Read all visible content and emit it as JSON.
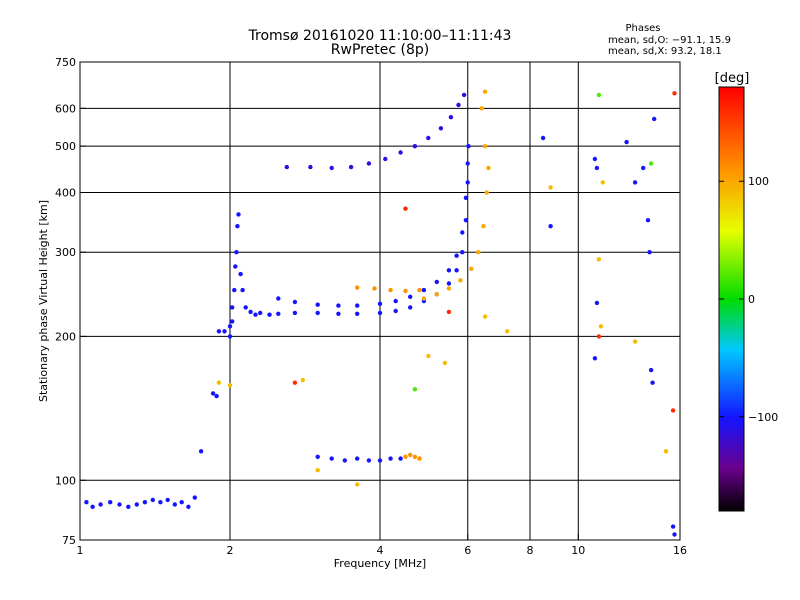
{
  "chart_data": {
    "type": "scatter",
    "title": "Tromsø 20161020 11:10:00–11:11:43",
    "subtitle": "RwPretec (8p)",
    "stats": {
      "title": "Phases",
      "line1": "mean, sd,O: −91.1, 15.9",
      "line2": "mean, sd,X:  93.2, 18.1"
    },
    "xlabel": "Frequency [MHz]",
    "ylabel": "Stationary phase Virtual Height [km]",
    "x_scale": "log",
    "y_scale": "log",
    "xlim": [
      1,
      16
    ],
    "ylim": [
      75,
      750
    ],
    "x_ticks": [
      1,
      2,
      4,
      6,
      8,
      10,
      16
    ],
    "x_tick_labels": [
      "1",
      "2",
      "4",
      "6",
      "8",
      "10",
      "16"
    ],
    "y_ticks": [
      75,
      100,
      200,
      300,
      400,
      500,
      600,
      750
    ],
    "y_tick_labels": [
      "75",
      "100",
      "200",
      "300",
      "400",
      "500",
      "600",
      "750"
    ],
    "grid": true,
    "colorbar": {
      "label": "[deg]",
      "range": [
        -180,
        180
      ],
      "ticks": [
        100,
        0,
        -100
      ],
      "tick_labels": [
        "100",
        "0",
        "−100"
      ]
    },
    "series": [
      {
        "points": [
          [
            1.03,
            90
          ],
          [
            1.06,
            88
          ],
          [
            1.1,
            89
          ],
          [
            1.15,
            90
          ],
          [
            1.2,
            89
          ],
          [
            1.25,
            88
          ],
          [
            1.3,
            89
          ],
          [
            1.35,
            90
          ],
          [
            1.4,
            91
          ],
          [
            1.45,
            90
          ],
          [
            1.5,
            91
          ],
          [
            1.55,
            89
          ],
          [
            1.6,
            90
          ],
          [
            1.65,
            88
          ],
          [
            1.7,
            92
          ]
        ],
        "phase": -100
      },
      {
        "points": [
          [
            1.75,
            115
          ],
          [
            1.85,
            152
          ],
          [
            1.88,
            150
          ],
          [
            1.9,
            205
          ],
          [
            1.95,
            205
          ],
          [
            2.0,
            210
          ],
          [
            2.02,
            215
          ]
        ],
        "phase": -100
      },
      {
        "points": [
          [
            2.0,
            200
          ],
          [
            2.02,
            230
          ],
          [
            2.04,
            250
          ],
          [
            2.05,
            280
          ],
          [
            2.06,
            300
          ],
          [
            2.07,
            340
          ],
          [
            2.08,
            360
          ],
          [
            2.1,
            270
          ],
          [
            2.12,
            250
          ],
          [
            2.15,
            230
          ],
          [
            2.2,
            225
          ],
          [
            2.25,
            222
          ],
          [
            2.3,
            224
          ],
          [
            2.4,
            222
          ],
          [
            2.5,
            223
          ],
          [
            2.7,
            224
          ],
          [
            3.0,
            224
          ],
          [
            3.3,
            223
          ],
          [
            3.6,
            223
          ],
          [
            4.0,
            224
          ],
          [
            4.3,
            226
          ],
          [
            4.6,
            230
          ],
          [
            4.9,
            237
          ],
          [
            5.2,
            245
          ],
          [
            5.5,
            258
          ],
          [
            5.7,
            275
          ],
          [
            5.85,
            300
          ],
          [
            5.95,
            350
          ],
          [
            6.0,
            420
          ],
          [
            6.02,
            500
          ]
        ],
        "phase": -100
      },
      {
        "points": [
          [
            2.5,
            240
          ],
          [
            2.7,
            236
          ],
          [
            3.0,
            233
          ],
          [
            3.3,
            232
          ],
          [
            3.6,
            232
          ],
          [
            4.0,
            234
          ],
          [
            4.3,
            237
          ],
          [
            4.6,
            242
          ],
          [
            4.9,
            250
          ],
          [
            5.2,
            260
          ],
          [
            5.5,
            275
          ],
          [
            5.7,
            295
          ],
          [
            5.85,
            330
          ],
          [
            5.95,
            390
          ],
          [
            6.0,
            460
          ]
        ],
        "phase": -100
      },
      {
        "points": [
          [
            2.6,
            452
          ],
          [
            2.9,
            452
          ],
          [
            3.2,
            450
          ],
          [
            3.5,
            452
          ],
          [
            3.8,
            460
          ],
          [
            4.1,
            470
          ],
          [
            4.4,
            485
          ],
          [
            4.7,
            500
          ],
          [
            5.0,
            520
          ],
          [
            5.3,
            545
          ],
          [
            5.55,
            575
          ],
          [
            5.75,
            610
          ],
          [
            5.9,
            640
          ]
        ],
        "phase": -110
      },
      {
        "points": [
          [
            3.0,
            112
          ],
          [
            3.2,
            111
          ],
          [
            3.4,
            110
          ],
          [
            3.6,
            111
          ],
          [
            3.8,
            110
          ],
          [
            4.0,
            110
          ],
          [
            4.2,
            111
          ],
          [
            4.4,
            111
          ]
        ],
        "phase": -100
      },
      {
        "points": [
          [
            4.5,
            112
          ],
          [
            4.6,
            113
          ],
          [
            4.7,
            112
          ],
          [
            4.8,
            111
          ]
        ],
        "phase": 110
      },
      {
        "points": [
          [
            3.6,
            253
          ],
          [
            3.9,
            252
          ],
          [
            4.2,
            250
          ],
          [
            4.5,
            249
          ],
          [
            4.8,
            250
          ]
        ],
        "phase": 110
      },
      {
        "points": [
          [
            4.9,
            240
          ],
          [
            5.2,
            245
          ],
          [
            5.5,
            252
          ],
          [
            5.8,
            262
          ],
          [
            6.1,
            277
          ],
          [
            6.3,
            300
          ],
          [
            6.45,
            340
          ],
          [
            6.55,
            400
          ],
          [
            6.6,
            450
          ],
          [
            6.5,
            500
          ],
          [
            6.4,
            600
          ],
          [
            6.5,
            650
          ]
        ],
        "phase": 100
      },
      {
        "points": [
          [
            8.5,
            520
          ],
          [
            8.8,
            340
          ],
          [
            10.8,
            470
          ],
          [
            10.9,
            450
          ],
          [
            10.9,
            235
          ],
          [
            10.8,
            180
          ],
          [
            12.5,
            510
          ],
          [
            13.0,
            420
          ],
          [
            13.5,
            450
          ],
          [
            13.8,
            350
          ],
          [
            13.9,
            300
          ],
          [
            14.0,
            170
          ],
          [
            14.1,
            160
          ],
          [
            14.2,
            570
          ],
          [
            15.5,
            80
          ],
          [
            15.6,
            77
          ]
        ],
        "phase": -100
      },
      {
        "points": [
          [
            1.9,
            160
          ],
          [
            2.0,
            158
          ],
          [
            2.8,
            162
          ],
          [
            3.0,
            105
          ],
          [
            3.6,
            98
          ],
          [
            5.0,
            182
          ],
          [
            5.4,
            176
          ],
          [
            6.5,
            220
          ],
          [
            7.2,
            205
          ],
          [
            8.8,
            410
          ],
          [
            11.0,
            290
          ],
          [
            11.1,
            210
          ],
          [
            11.2,
            420
          ],
          [
            13.0,
            195
          ],
          [
            15.0,
            115
          ]
        ],
        "phase": 90
      },
      {
        "points": [
          [
            4.5,
            370
          ],
          [
            2.7,
            160
          ],
          [
            5.5,
            225
          ],
          [
            11.0,
            200
          ],
          [
            15.6,
            645
          ],
          [
            15.5,
            140
          ]
        ],
        "phase": 160
      },
      {
        "points": [
          [
            4.7,
            155
          ],
          [
            14.0,
            460
          ],
          [
            11.0,
            640
          ]
        ],
        "phase": 20
      }
    ]
  }
}
